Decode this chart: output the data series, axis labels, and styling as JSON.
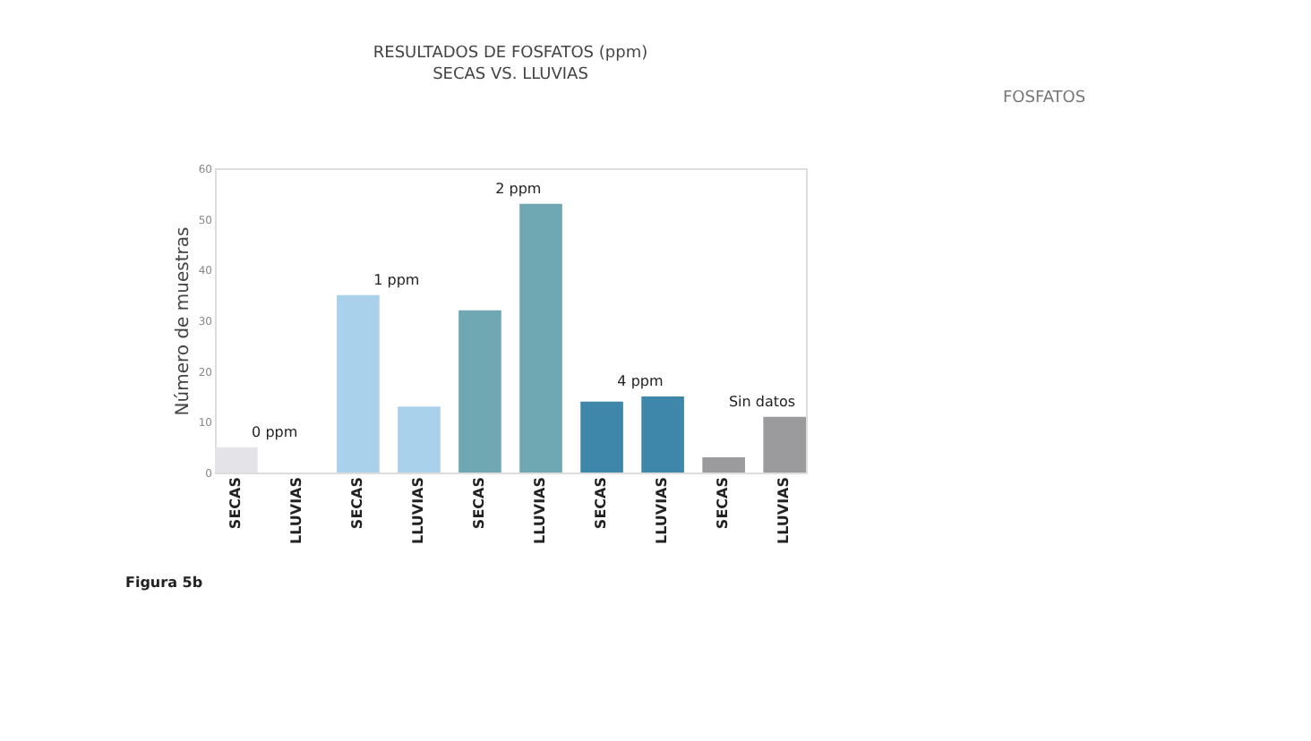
{
  "chart_data": {
    "type": "bar",
    "title": "RESULTADOS DE FOSFATOS (ppm)",
    "subtitle": "SECAS VS. LLUVIAS",
    "ylabel": "Número de muestras",
    "categories": [
      "SECAS",
      "LLUVIAS",
      "SECAS",
      "LLUVIAS",
      "SECAS",
      "LLUVIAS",
      "SECAS",
      "LLUVIAS",
      "SECAS",
      "LLUVIAS"
    ],
    "values": [
      5,
      0,
      35,
      13,
      32,
      53,
      14,
      15,
      3,
      11
    ],
    "colors": [
      "#e4e4e8",
      "#e4e4e8",
      "#a9d1ec",
      "#a9d1ec",
      "#6fa7b2",
      "#6fa7b2",
      "#3f87aa",
      "#3f87aa",
      "#9b9b9e",
      "#9b9b9e"
    ],
    "ylim": [
      0,
      60
    ],
    "yticks": [
      0,
      10,
      20,
      30,
      40,
      50,
      60
    ],
    "grid": false,
    "annotations": [
      "0 ppm",
      "1 ppm",
      "2 ppm",
      "4 ppm",
      "Sin datos",
      "FOSFATOS",
      "Figura 5b"
    ]
  }
}
